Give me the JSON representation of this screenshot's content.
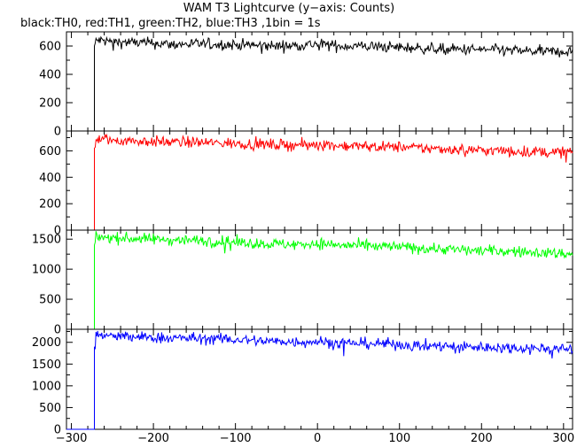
{
  "chart_data": {
    "type": "line",
    "title": "WAM T3 Lightcurve (y−axis: Counts)",
    "subtitle": "black:TH0, red:TH1, green:TH2, blue:TH3 ,1bin = 1s",
    "xlim": [
      -306,
      311
    ],
    "x_ticks": [
      -300,
      -200,
      -100,
      0,
      100,
      200,
      300
    ],
    "x_tick_labels": [
      "−300",
      "−200",
      "−100",
      "0",
      "100",
      "200",
      "300"
    ],
    "grid": false,
    "legend": "subtitle",
    "series": [
      {
        "name": "TH0",
        "color": "#000000",
        "ylim": [
          0,
          700
        ],
        "y_ticks": [
          0,
          200,
          400,
          600
        ],
        "y_tick_labels": [
          "0",
          "200",
          "400",
          "600"
        ],
        "x": [
          -306,
          -272,
          -272,
          -271,
          -270,
          -265,
          -250,
          -225,
          -200,
          -175,
          -150,
          -125,
          -100,
          -75,
          -50,
          -25,
          0,
          25,
          50,
          75,
          100,
          125,
          150,
          175,
          200,
          225,
          250,
          275,
          300,
          311
        ],
        "values": [
          0,
          0,
          270,
          600,
          640,
          640,
          630,
          625,
          620,
          610,
          615,
          610,
          610,
          605,
          600,
          605,
          615,
          600,
          600,
          595,
          590,
          585,
          580,
          575,
          575,
          570,
          565,
          560,
          560,
          560
        ]
      },
      {
        "name": "TH1",
        "color": "#ff0000",
        "ylim": [
          0,
          750
        ],
        "y_ticks": [
          0,
          200,
          400,
          600
        ],
        "y_tick_labels": [
          "0",
          "200",
          "400",
          "600"
        ],
        "x": [
          -306,
          -272,
          -272,
          -271,
          -270,
          -265,
          -250,
          -225,
          -200,
          -175,
          -150,
          -125,
          -100,
          -75,
          -50,
          -25,
          0,
          25,
          50,
          75,
          100,
          125,
          150,
          175,
          200,
          225,
          250,
          275,
          300,
          311
        ],
        "values": [
          0,
          0,
          270,
          620,
          690,
          690,
          680,
          675,
          670,
          665,
          665,
          660,
          655,
          650,
          645,
          645,
          650,
          640,
          635,
          630,
          630,
          620,
          615,
          610,
          605,
          600,
          595,
          590,
          590,
          590
        ]
      },
      {
        "name": "TH2",
        "color": "#00ff00",
        "ylim": [
          0,
          1650
        ],
        "y_ticks": [
          0,
          500,
          1000,
          1500
        ],
        "y_tick_labels": [
          "0",
          "500",
          "1000",
          "1500"
        ],
        "x": [
          -306,
          -272,
          -272,
          -271,
          -270,
          -265,
          -250,
          -225,
          -200,
          -175,
          -150,
          -125,
          -100,
          -75,
          -50,
          -25,
          0,
          25,
          50,
          75,
          100,
          125,
          150,
          175,
          200,
          225,
          250,
          275,
          300,
          311
        ],
        "values": [
          0,
          0,
          560,
          1400,
          1540,
          1540,
          1520,
          1510,
          1500,
          1490,
          1480,
          1470,
          1450,
          1430,
          1420,
          1410,
          1430,
          1400,
          1390,
          1380,
          1370,
          1350,
          1340,
          1320,
          1310,
          1300,
          1290,
          1270,
          1260,
          1260
        ]
      },
      {
        "name": "TH3",
        "color": "#0000ff",
        "ylim": [
          0,
          2300
        ],
        "y_ticks": [
          0,
          500,
          1000,
          1500,
          2000
        ],
        "y_tick_labels": [
          "0",
          "500",
          "1000",
          "1500",
          "2000"
        ],
        "x": [
          -306,
          -272,
          -272,
          -271,
          -270,
          -265,
          -250,
          -225,
          -200,
          -175,
          -150,
          -125,
          -100,
          -75,
          -50,
          -25,
          0,
          25,
          50,
          75,
          100,
          125,
          150,
          175,
          200,
          225,
          250,
          275,
          300,
          311
        ],
        "values": [
          0,
          0,
          750,
          1900,
          2170,
          2160,
          2140,
          2120,
          2110,
          2100,
          2090,
          2080,
          2060,
          2040,
          2020,
          2010,
          2020,
          1990,
          1980,
          1970,
          1950,
          1930,
          1920,
          1900,
          1890,
          1880,
          1870,
          1860,
          1850,
          1850
        ]
      }
    ]
  }
}
